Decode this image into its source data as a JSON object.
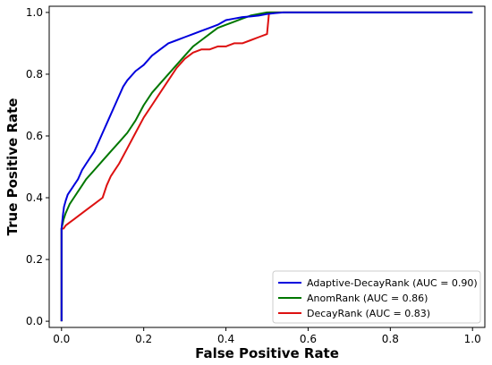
{
  "chart_data": {
    "type": "line",
    "title": "",
    "xlabel": "False Positive Rate",
    "ylabel": "True Positive Rate",
    "xlim": [
      -0.03,
      1.03
    ],
    "ylim": [
      -0.02,
      1.02
    ],
    "x_ticks": [
      0.0,
      0.2,
      0.4,
      0.6,
      0.8,
      1.0
    ],
    "y_ticks": [
      0.0,
      0.2,
      0.4,
      0.6,
      0.8,
      1.0
    ],
    "x_tick_labels": [
      "0.0",
      "0.2",
      "0.4",
      "0.6",
      "0.8",
      "1.0"
    ],
    "y_tick_labels": [
      "0.0",
      "0.2",
      "0.4",
      "0.6",
      "0.8",
      "1.0"
    ],
    "grid": false,
    "legend_position": "lower-right",
    "series": [
      {
        "name": "Adaptive-DecayRank (AUC = 0.90)",
        "color": "#0000dd",
        "x": [
          0.0,
          0.0,
          0.003,
          0.006,
          0.01,
          0.015,
          0.02,
          0.025,
          0.03,
          0.04,
          0.05,
          0.06,
          0.07,
          0.08,
          0.09,
          0.1,
          0.11,
          0.12,
          0.13,
          0.14,
          0.15,
          0.16,
          0.18,
          0.2,
          0.22,
          0.24,
          0.26,
          0.28,
          0.3,
          0.32,
          0.34,
          0.36,
          0.38,
          0.4,
          0.42,
          0.44,
          0.46,
          0.48,
          0.5,
          0.52,
          0.54,
          1.0
        ],
        "y": [
          0.0,
          0.3,
          0.34,
          0.37,
          0.39,
          0.41,
          0.42,
          0.43,
          0.44,
          0.46,
          0.49,
          0.51,
          0.53,
          0.55,
          0.58,
          0.61,
          0.64,
          0.67,
          0.7,
          0.73,
          0.76,
          0.78,
          0.81,
          0.83,
          0.86,
          0.88,
          0.9,
          0.91,
          0.92,
          0.93,
          0.94,
          0.95,
          0.96,
          0.975,
          0.98,
          0.985,
          0.987,
          0.99,
          0.995,
          0.998,
          1.0,
          1.0
        ]
      },
      {
        "name": "AnomRank (AUC = 0.86)",
        "color": "#007700",
        "x": [
          0.0,
          0.0,
          0.005,
          0.01,
          0.02,
          0.03,
          0.04,
          0.05,
          0.06,
          0.08,
          0.1,
          0.12,
          0.14,
          0.16,
          0.18,
          0.2,
          0.22,
          0.24,
          0.26,
          0.28,
          0.3,
          0.32,
          0.34,
          0.36,
          0.38,
          0.4,
          0.42,
          0.44,
          0.46,
          0.48,
          0.5,
          0.52,
          1.0
        ],
        "y": [
          0.0,
          0.3,
          0.33,
          0.35,
          0.38,
          0.4,
          0.42,
          0.44,
          0.46,
          0.49,
          0.52,
          0.55,
          0.58,
          0.61,
          0.65,
          0.7,
          0.74,
          0.77,
          0.8,
          0.83,
          0.86,
          0.89,
          0.91,
          0.93,
          0.95,
          0.96,
          0.97,
          0.98,
          0.99,
          0.995,
          1.0,
          1.0,
          1.0
        ]
      },
      {
        "name": "DecayRank (AUC = 0.83)",
        "color": "#dd1111",
        "x": [
          0.0,
          0.0,
          0.005,
          0.01,
          0.02,
          0.03,
          0.04,
          0.06,
          0.08,
          0.1,
          0.11,
          0.12,
          0.14,
          0.16,
          0.18,
          0.2,
          0.22,
          0.24,
          0.26,
          0.28,
          0.3,
          0.32,
          0.34,
          0.36,
          0.38,
          0.4,
          0.42,
          0.44,
          0.46,
          0.48,
          0.5,
          0.505,
          0.52,
          0.6,
          0.8,
          1.0
        ],
        "y": [
          0.0,
          0.3,
          0.3,
          0.31,
          0.32,
          0.33,
          0.34,
          0.36,
          0.38,
          0.4,
          0.44,
          0.47,
          0.51,
          0.56,
          0.61,
          0.66,
          0.7,
          0.74,
          0.78,
          0.82,
          0.85,
          0.87,
          0.88,
          0.88,
          0.89,
          0.89,
          0.9,
          0.9,
          0.91,
          0.92,
          0.93,
          1.0,
          1.0,
          1.0,
          1.0,
          1.0
        ]
      }
    ]
  }
}
